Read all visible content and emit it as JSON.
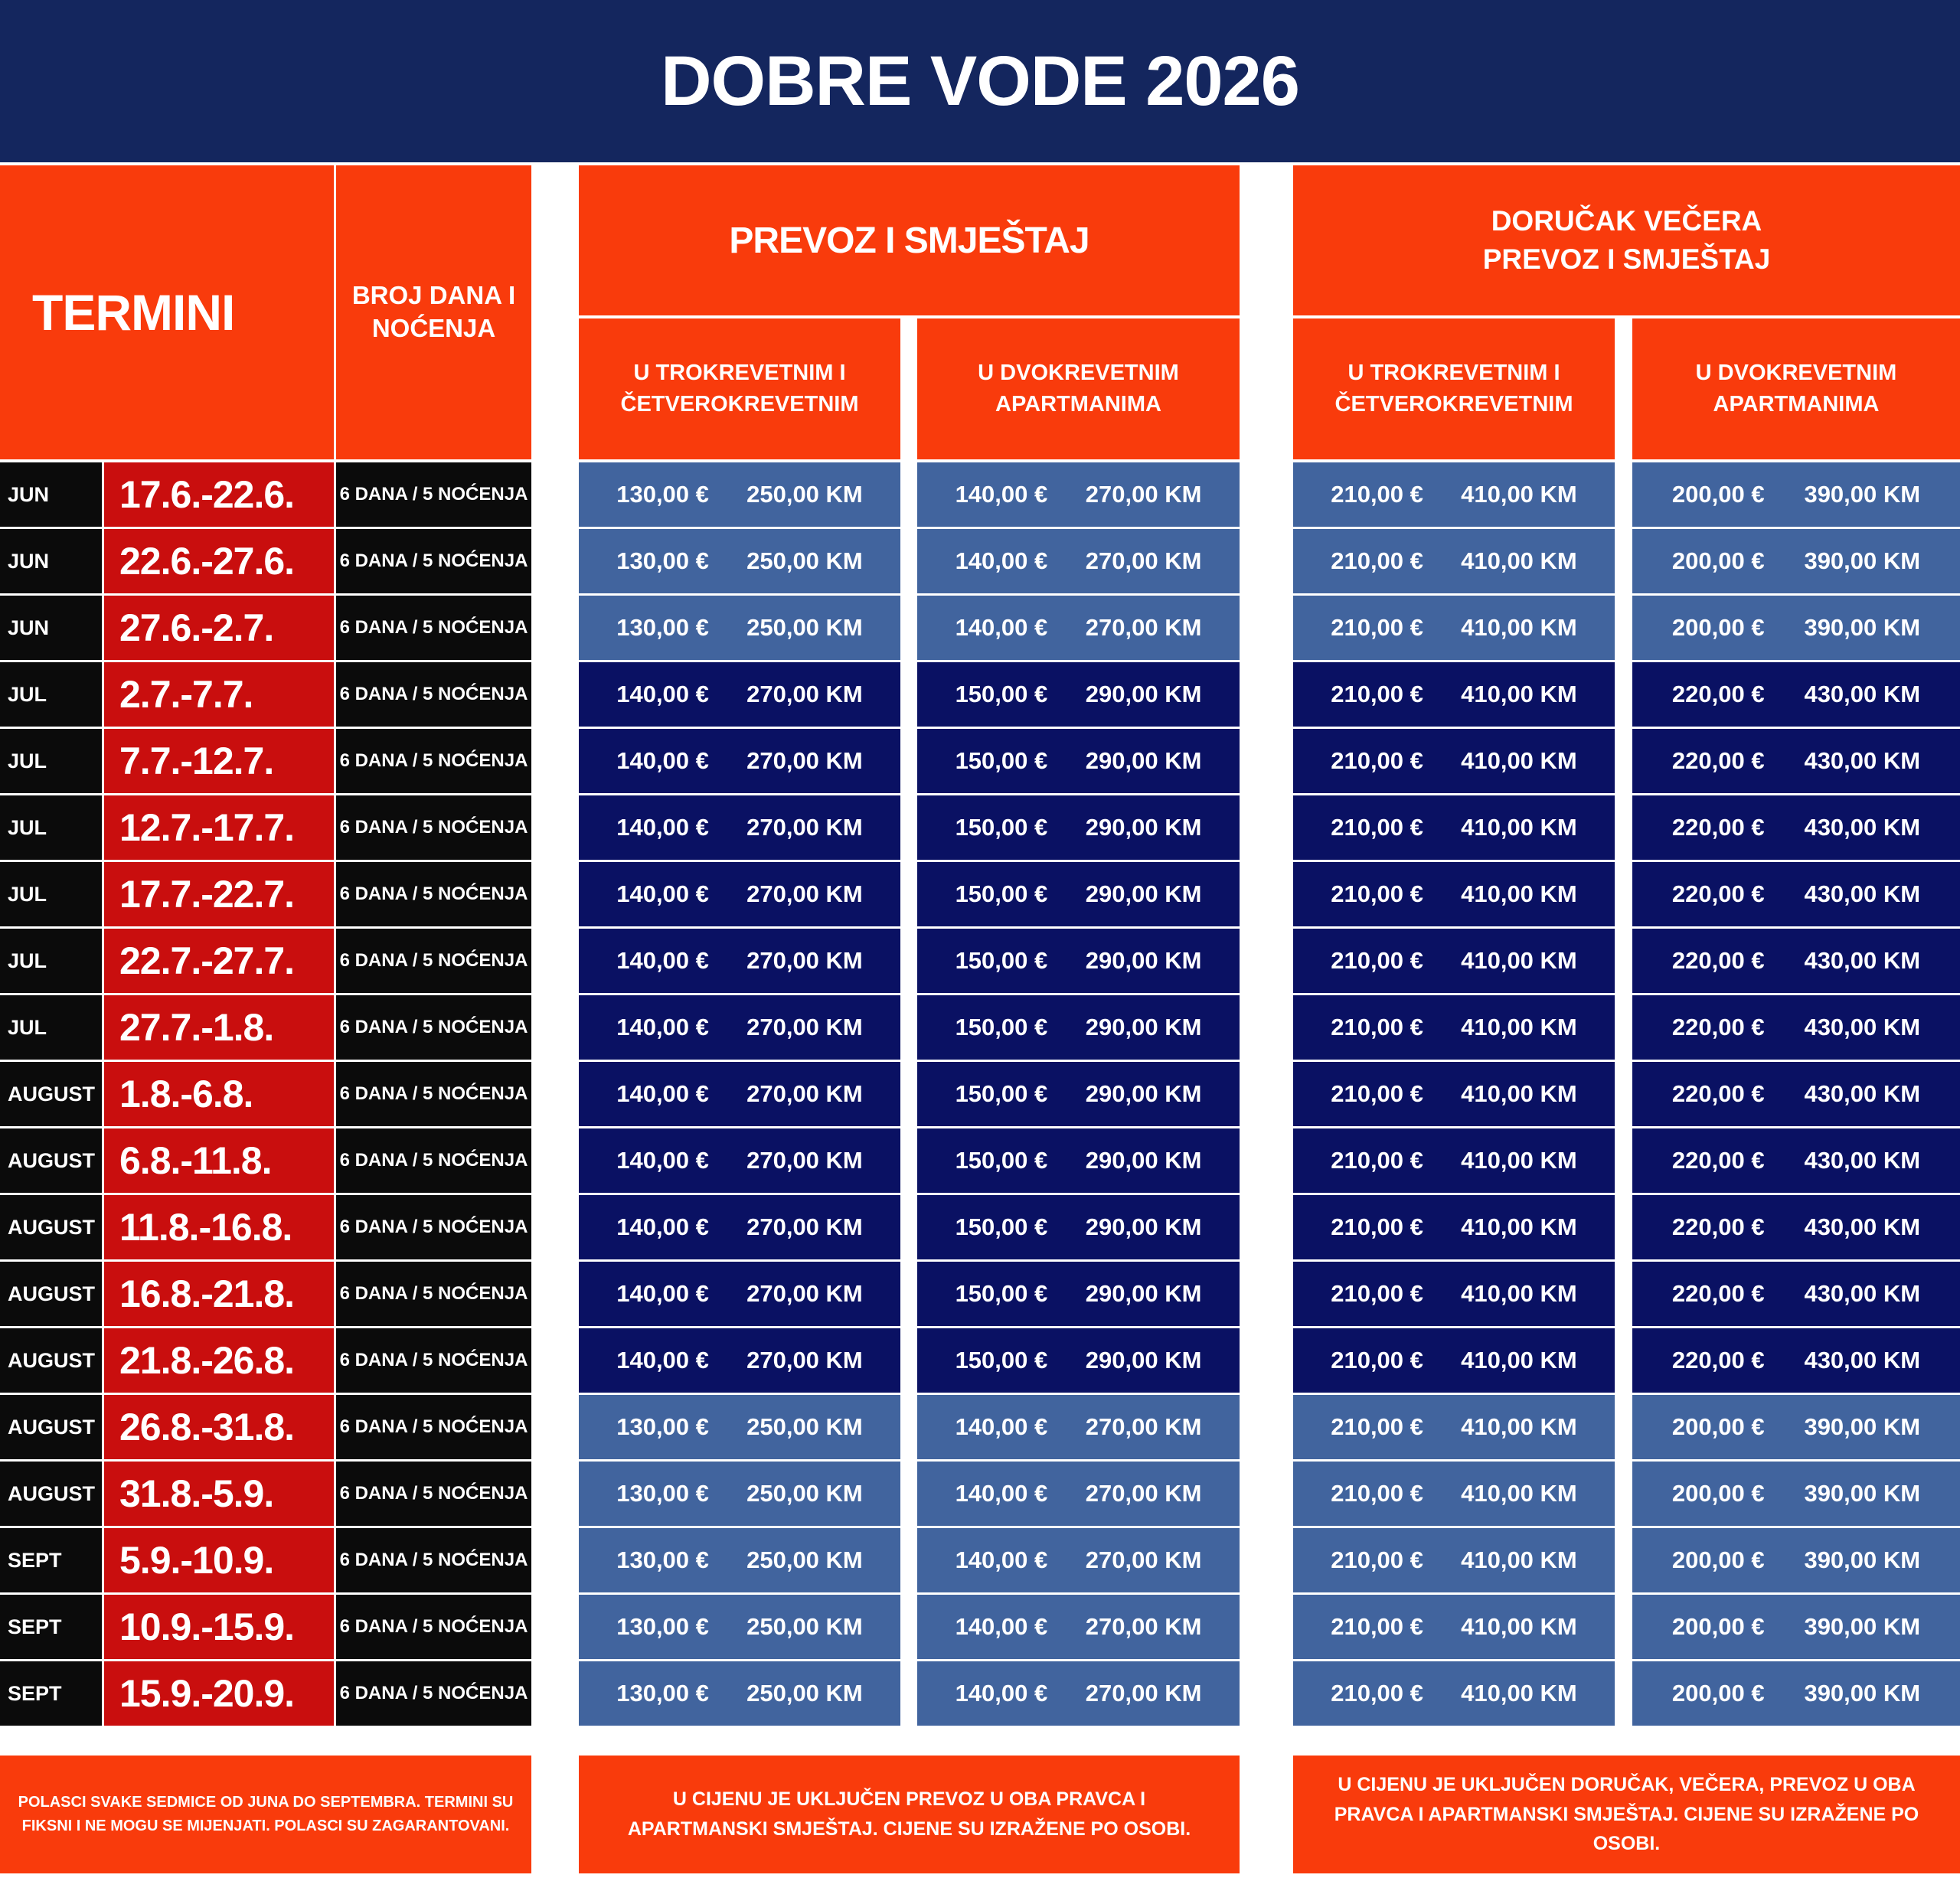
{
  "title": "DOBRE VODE 2026",
  "colors": {
    "navy": "#14265E",
    "orange": "#F93B0C",
    "red": "#C90E0E",
    "black": "#0B0B0B",
    "row-light": "#41649E",
    "row-dark": "#0A1163"
  },
  "table": {
    "termini_header": "TERMINI",
    "days_header": "BROJ DANA I NOĆENJA",
    "sections": [
      {
        "title_line1": "PREVOZ I SMJEŠTAJ",
        "title_line2": "",
        "columns": [
          {
            "line1": "U TROKREVETNIM I",
            "line2": "ČETVEROKREVETNIM"
          },
          {
            "line1": "U DVOKREVETNIM",
            "line2": "APARTMANIMA"
          }
        ]
      },
      {
        "title_line1": "DORUČAK VEČERA",
        "title_line2": "PREVOZ I SMJEŠTAJ",
        "columns": [
          {
            "line1": "U TROKREVETNIM I",
            "line2": "ČETVEROKREVETNIM"
          },
          {
            "line1": "U DVOKREVETNIM",
            "line2": "APARTMANIMA"
          }
        ]
      }
    ],
    "rows": [
      {
        "month": "JUN",
        "dates": "17.6.-22.6.",
        "days": "6 DANA / 5 NOĆENJA",
        "shade": "light",
        "prices": [
          [
            "130,00 €",
            "250,00 KM"
          ],
          [
            "140,00 €",
            "270,00 KM"
          ],
          [
            "210,00 €",
            "410,00 KM"
          ],
          [
            "200,00 €",
            "390,00 KM"
          ]
        ]
      },
      {
        "month": "JUN",
        "dates": "22.6.-27.6.",
        "days": "6 DANA / 5 NOĆENJA",
        "shade": "light",
        "prices": [
          [
            "130,00 €",
            "250,00 KM"
          ],
          [
            "140,00 €",
            "270,00 KM"
          ],
          [
            "210,00 €",
            "410,00 KM"
          ],
          [
            "200,00 €",
            "390,00 KM"
          ]
        ]
      },
      {
        "month": "JUN",
        "dates": "27.6.-2.7.",
        "days": "6 DANA / 5 NOĆENJA",
        "shade": "light",
        "prices": [
          [
            "130,00 €",
            "250,00 KM"
          ],
          [
            "140,00 €",
            "270,00 KM"
          ],
          [
            "210,00 €",
            "410,00 KM"
          ],
          [
            "200,00 €",
            "390,00 KM"
          ]
        ]
      },
      {
        "month": "JUL",
        "dates": "2.7.-7.7.",
        "days": "6 DANA / 5 NOĆENJA",
        "shade": "dark",
        "prices": [
          [
            "140,00 €",
            "270,00 KM"
          ],
          [
            "150,00 €",
            "290,00 KM"
          ],
          [
            "210,00 €",
            "410,00 KM"
          ],
          [
            "220,00 €",
            "430,00 KM"
          ]
        ]
      },
      {
        "month": "JUL",
        "dates": "7.7.-12.7.",
        "days": "6 DANA / 5 NOĆENJA",
        "shade": "dark",
        "prices": [
          [
            "140,00 €",
            "270,00 KM"
          ],
          [
            "150,00 €",
            "290,00 KM"
          ],
          [
            "210,00 €",
            "410,00 KM"
          ],
          [
            "220,00 €",
            "430,00 KM"
          ]
        ]
      },
      {
        "month": "JUL",
        "dates": "12.7.-17.7.",
        "days": "6 DANA / 5 NOĆENJA",
        "shade": "dark",
        "prices": [
          [
            "140,00 €",
            "270,00 KM"
          ],
          [
            "150,00 €",
            "290,00 KM"
          ],
          [
            "210,00 €",
            "410,00 KM"
          ],
          [
            "220,00 €",
            "430,00 KM"
          ]
        ]
      },
      {
        "month": "JUL",
        "dates": "17.7.-22.7.",
        "days": "6 DANA / 5 NOĆENJA",
        "shade": "dark",
        "prices": [
          [
            "140,00 €",
            "270,00 KM"
          ],
          [
            "150,00 €",
            "290,00 KM"
          ],
          [
            "210,00 €",
            "410,00 KM"
          ],
          [
            "220,00 €",
            "430,00 KM"
          ]
        ]
      },
      {
        "month": "JUL",
        "dates": "22.7.-27.7.",
        "days": "6 DANA / 5 NOĆENJA",
        "shade": "dark",
        "prices": [
          [
            "140,00 €",
            "270,00 KM"
          ],
          [
            "150,00 €",
            "290,00 KM"
          ],
          [
            "210,00 €",
            "410,00 KM"
          ],
          [
            "220,00 €",
            "430,00 KM"
          ]
        ]
      },
      {
        "month": "JUL",
        "dates": "27.7.-1.8.",
        "days": "6 DANA / 5 NOĆENJA",
        "shade": "dark",
        "prices": [
          [
            "140,00 €",
            "270,00 KM"
          ],
          [
            "150,00 €",
            "290,00 KM"
          ],
          [
            "210,00 €",
            "410,00 KM"
          ],
          [
            "220,00 €",
            "430,00 KM"
          ]
        ]
      },
      {
        "month": "AUGUST",
        "dates": "1.8.-6.8.",
        "days": "6 DANA / 5 NOĆENJA",
        "shade": "dark",
        "prices": [
          [
            "140,00 €",
            "270,00 KM"
          ],
          [
            "150,00 €",
            "290,00 KM"
          ],
          [
            "210,00 €",
            "410,00 KM"
          ],
          [
            "220,00 €",
            "430,00 KM"
          ]
        ]
      },
      {
        "month": "AUGUST",
        "dates": "6.8.-11.8.",
        "days": "6 DANA / 5 NOĆENJA",
        "shade": "dark",
        "prices": [
          [
            "140,00 €",
            "270,00 KM"
          ],
          [
            "150,00 €",
            "290,00 KM"
          ],
          [
            "210,00 €",
            "410,00 KM"
          ],
          [
            "220,00 €",
            "430,00 KM"
          ]
        ]
      },
      {
        "month": "AUGUST",
        "dates": "11.8.-16.8.",
        "days": "6 DANA / 5 NOĆENJA",
        "shade": "dark",
        "prices": [
          [
            "140,00 €",
            "270,00 KM"
          ],
          [
            "150,00 €",
            "290,00 KM"
          ],
          [
            "210,00 €",
            "410,00 KM"
          ],
          [
            "220,00 €",
            "430,00 KM"
          ]
        ]
      },
      {
        "month": "AUGUST",
        "dates": "16.8.-21.8.",
        "days": "6 DANA / 5 NOĆENJA",
        "shade": "dark",
        "prices": [
          [
            "140,00 €",
            "270,00 KM"
          ],
          [
            "150,00 €",
            "290,00 KM"
          ],
          [
            "210,00 €",
            "410,00 KM"
          ],
          [
            "220,00 €",
            "430,00 KM"
          ]
        ]
      },
      {
        "month": "AUGUST",
        "dates": "21.8.-26.8.",
        "days": "6 DANA / 5 NOĆENJA",
        "shade": "dark",
        "prices": [
          [
            "140,00 €",
            "270,00 KM"
          ],
          [
            "150,00 €",
            "290,00 KM"
          ],
          [
            "210,00 €",
            "410,00 KM"
          ],
          [
            "220,00 €",
            "430,00 KM"
          ]
        ]
      },
      {
        "month": "AUGUST",
        "dates": "26.8.-31.8.",
        "days": "6 DANA / 5 NOĆENJA",
        "shade": "light",
        "prices": [
          [
            "130,00 €",
            "250,00 KM"
          ],
          [
            "140,00 €",
            "270,00 KM"
          ],
          [
            "210,00 €",
            "410,00 KM"
          ],
          [
            "200,00 €",
            "390,00 KM"
          ]
        ]
      },
      {
        "month": "AUGUST",
        "dates": "31.8.-5.9.",
        "days": "6 DANA / 5 NOĆENJA",
        "shade": "light",
        "prices": [
          [
            "130,00 €",
            "250,00 KM"
          ],
          [
            "140,00 €",
            "270,00 KM"
          ],
          [
            "210,00 €",
            "410,00 KM"
          ],
          [
            "200,00 €",
            "390,00 KM"
          ]
        ]
      },
      {
        "month": "SEPT",
        "dates": "5.9.-10.9.",
        "days": "6 DANA / 5 NOĆENJA",
        "shade": "light",
        "prices": [
          [
            "130,00 €",
            "250,00 KM"
          ],
          [
            "140,00 €",
            "270,00 KM"
          ],
          [
            "210,00 €",
            "410,00 KM"
          ],
          [
            "200,00 €",
            "390,00 KM"
          ]
        ]
      },
      {
        "month": "SEPT",
        "dates": "10.9.-15.9.",
        "days": "6 DANA / 5 NOĆENJA",
        "shade": "light",
        "prices": [
          [
            "130,00 €",
            "250,00 KM"
          ],
          [
            "140,00 €",
            "270,00 KM"
          ],
          [
            "210,00 €",
            "410,00 KM"
          ],
          [
            "200,00 €",
            "390,00 KM"
          ]
        ]
      },
      {
        "month": "SEPT",
        "dates": "15.9.-20.9.",
        "days": "6 DANA / 5 NOĆENJA",
        "shade": "light",
        "prices": [
          [
            "130,00 €",
            "250,00 KM"
          ],
          [
            "140,00 €",
            "270,00 KM"
          ],
          [
            "210,00 €",
            "410,00 KM"
          ],
          [
            "200,00 €",
            "390,00 KM"
          ]
        ]
      }
    ]
  },
  "footers": [
    "POLASCI SVAKE SEDMICE OD JUNA DO SEPTEMBRA. TERMINI SU FIKSNI I NE MOGU SE MIJENJATI. POLASCI SU ZAGARANTOVANI.",
    "U CIJENU JE UKLJUČEN PREVOZ U OBA PRAVCA I APARTMANSKI SMJEŠTAJ. CIJENE SU IZRAŽENE PO OSOBI.",
    "U CIJENU JE UKLJUČEN DORUČAK, VEČERA, PREVOZ U OBA PRAVCA I APARTMANSKI SMJEŠTAJ. CIJENE SU IZRAŽENE PO OSOBI."
  ]
}
